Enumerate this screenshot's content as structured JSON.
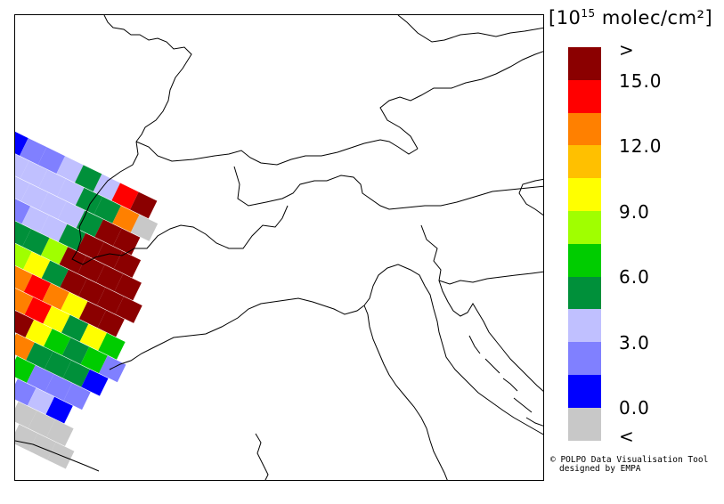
{
  "legend": {
    "unit_prefix": "[10",
    "unit_exp": "15",
    "unit_suffix": " molec/cm²]",
    "over_label": ">",
    "under_label": "<",
    "ticks": [
      "15.0",
      "12.0",
      "9.0",
      "6.0",
      "3.0",
      "0.0"
    ],
    "colors": [
      "#8b0000",
      "#ff0000",
      "#ff8000",
      "#ffc000",
      "#ffff00",
      "#a0ff00",
      "#00cc00",
      "#00903a",
      "#c0c0ff",
      "#8080ff",
      "#0000ff",
      "#c8c8c8"
    ]
  },
  "credit": {
    "line1": "© POLPO Data Visualisation Tool",
    "line2": "designed by EMPA"
  },
  "map": {
    "region": "Alps / Northern Italy",
    "pixel_colors": [
      [
        "#0000ff",
        "#8080ff",
        "#8080ff",
        "#c0c0ff",
        "#00903a",
        "#c0c0ff",
        "#ff0000",
        "#8b0000"
      ],
      [
        "#c0c0ff",
        "#c0c0ff",
        "#c0c0ff",
        "#c0c0ff",
        "#00903a",
        "#00903a",
        "#ff8000",
        "#c8c8c8"
      ],
      [
        "#c0c0ff",
        "#c0c0ff",
        "#c0c0ff",
        "#c0c0ff",
        "#00903a",
        "#8b0000",
        "#8b0000"
      ],
      [
        "#8080ff",
        "#c0c0ff",
        "#c0c0ff",
        "#00903a",
        "#8b0000",
        "#8b0000",
        "#8b0000"
      ],
      [
        "#00903a",
        "#00903a",
        "#a0ff00",
        "#8b0000",
        "#8b0000",
        "#8b0000",
        "#8b0000"
      ],
      [
        "#a0ff00",
        "#ffff00",
        "#00903a",
        "#8b0000",
        "#8b0000",
        "#8b0000",
        "#8b0000"
      ],
      [
        "#ff8000",
        "#ff0000",
        "#ff8000",
        "#ffff00",
        "#8b0000",
        "#8b0000"
      ],
      [
        "#ff8000",
        "#ff0000",
        "#ffff00",
        "#00903a",
        "#ffff00",
        "#00cc00"
      ],
      [
        "#8b0000",
        "#ffff00",
        "#00cc00",
        "#00903a",
        "#00cc00",
        "#8080ff"
      ],
      [
        "#ff8000",
        "#00903a",
        "#00903a",
        "#00903a",
        "#0000ff"
      ],
      [
        "#00cc00",
        "#8080ff",
        "#8080ff",
        "#8080ff"
      ],
      [
        "#8080ff",
        "#c0c0ff",
        "#0000ff"
      ],
      [
        "#c8c8c8",
        "#c8c8c8",
        "#c8c8c8"
      ],
      [
        "#c8c8c8",
        "#c8c8c8",
        "#c8c8c8"
      ]
    ]
  }
}
